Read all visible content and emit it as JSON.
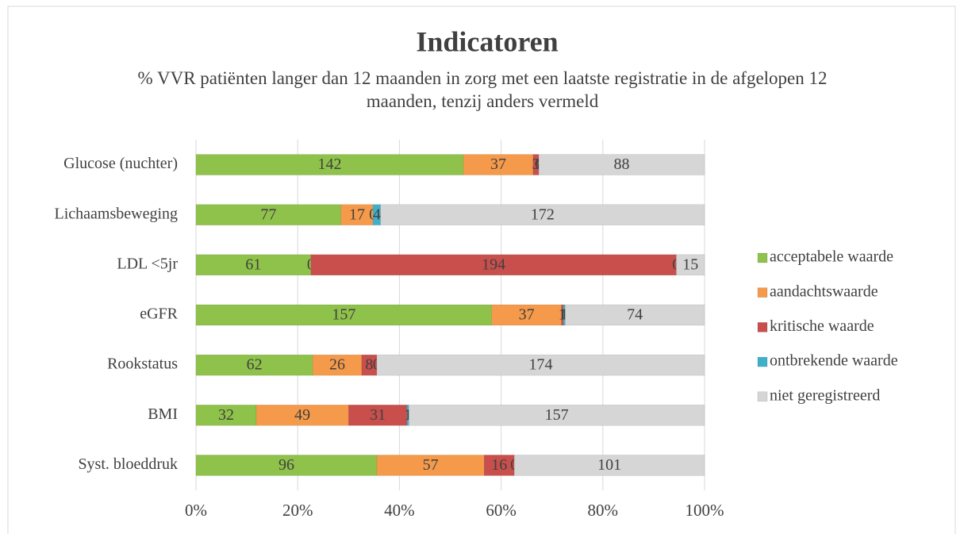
{
  "chart_data": {
    "type": "bar",
    "orientation": "horizontal",
    "stacking": "percent",
    "title": "Indicatoren",
    "subtitle": "% VVR patiënten langer dan 12 maanden in zorg met een laatste registratie in de afgelopen 12 maanden, tenzij anders vermeld",
    "categories": [
      "Glucose (nuchter)",
      "Lichaamsbeweging",
      "LDL <5jr",
      "eGFR",
      "Rookstatus",
      "BMI",
      "Syst. bloeddruk"
    ],
    "series": [
      {
        "name": "acceptabele waarde",
        "color": "#8fc24a",
        "values": [
          142,
          77,
          61,
          157,
          62,
          32,
          96
        ]
      },
      {
        "name": "aandachtswaarde",
        "color": "#f59a4a",
        "values": [
          37,
          17,
          0,
          37,
          26,
          49,
          57
        ]
      },
      {
        "name": "kritische waarde",
        "color": "#c94f4c",
        "values": [
          3,
          0,
          194,
          1,
          8,
          31,
          16
        ]
      },
      {
        "name": "ontbrekende waarde",
        "color": "#3fb0c9",
        "values": [
          0,
          4,
          0,
          1,
          0,
          1,
          0
        ]
      },
      {
        "name": "niet geregistreerd",
        "color": "#d6d6d6",
        "values": [
          88,
          172,
          15,
          74,
          174,
          157,
          101
        ]
      }
    ],
    "xlim": [
      0,
      100
    ],
    "xticks": [
      {
        "value": 0,
        "label": "0%"
      },
      {
        "value": 20,
        "label": "20%"
      },
      {
        "value": 40,
        "label": "40%"
      },
      {
        "value": 60,
        "label": "60%"
      },
      {
        "value": 80,
        "label": "80%"
      },
      {
        "value": 100,
        "label": "100%"
      }
    ],
    "grid": true,
    "legend": "right"
  }
}
